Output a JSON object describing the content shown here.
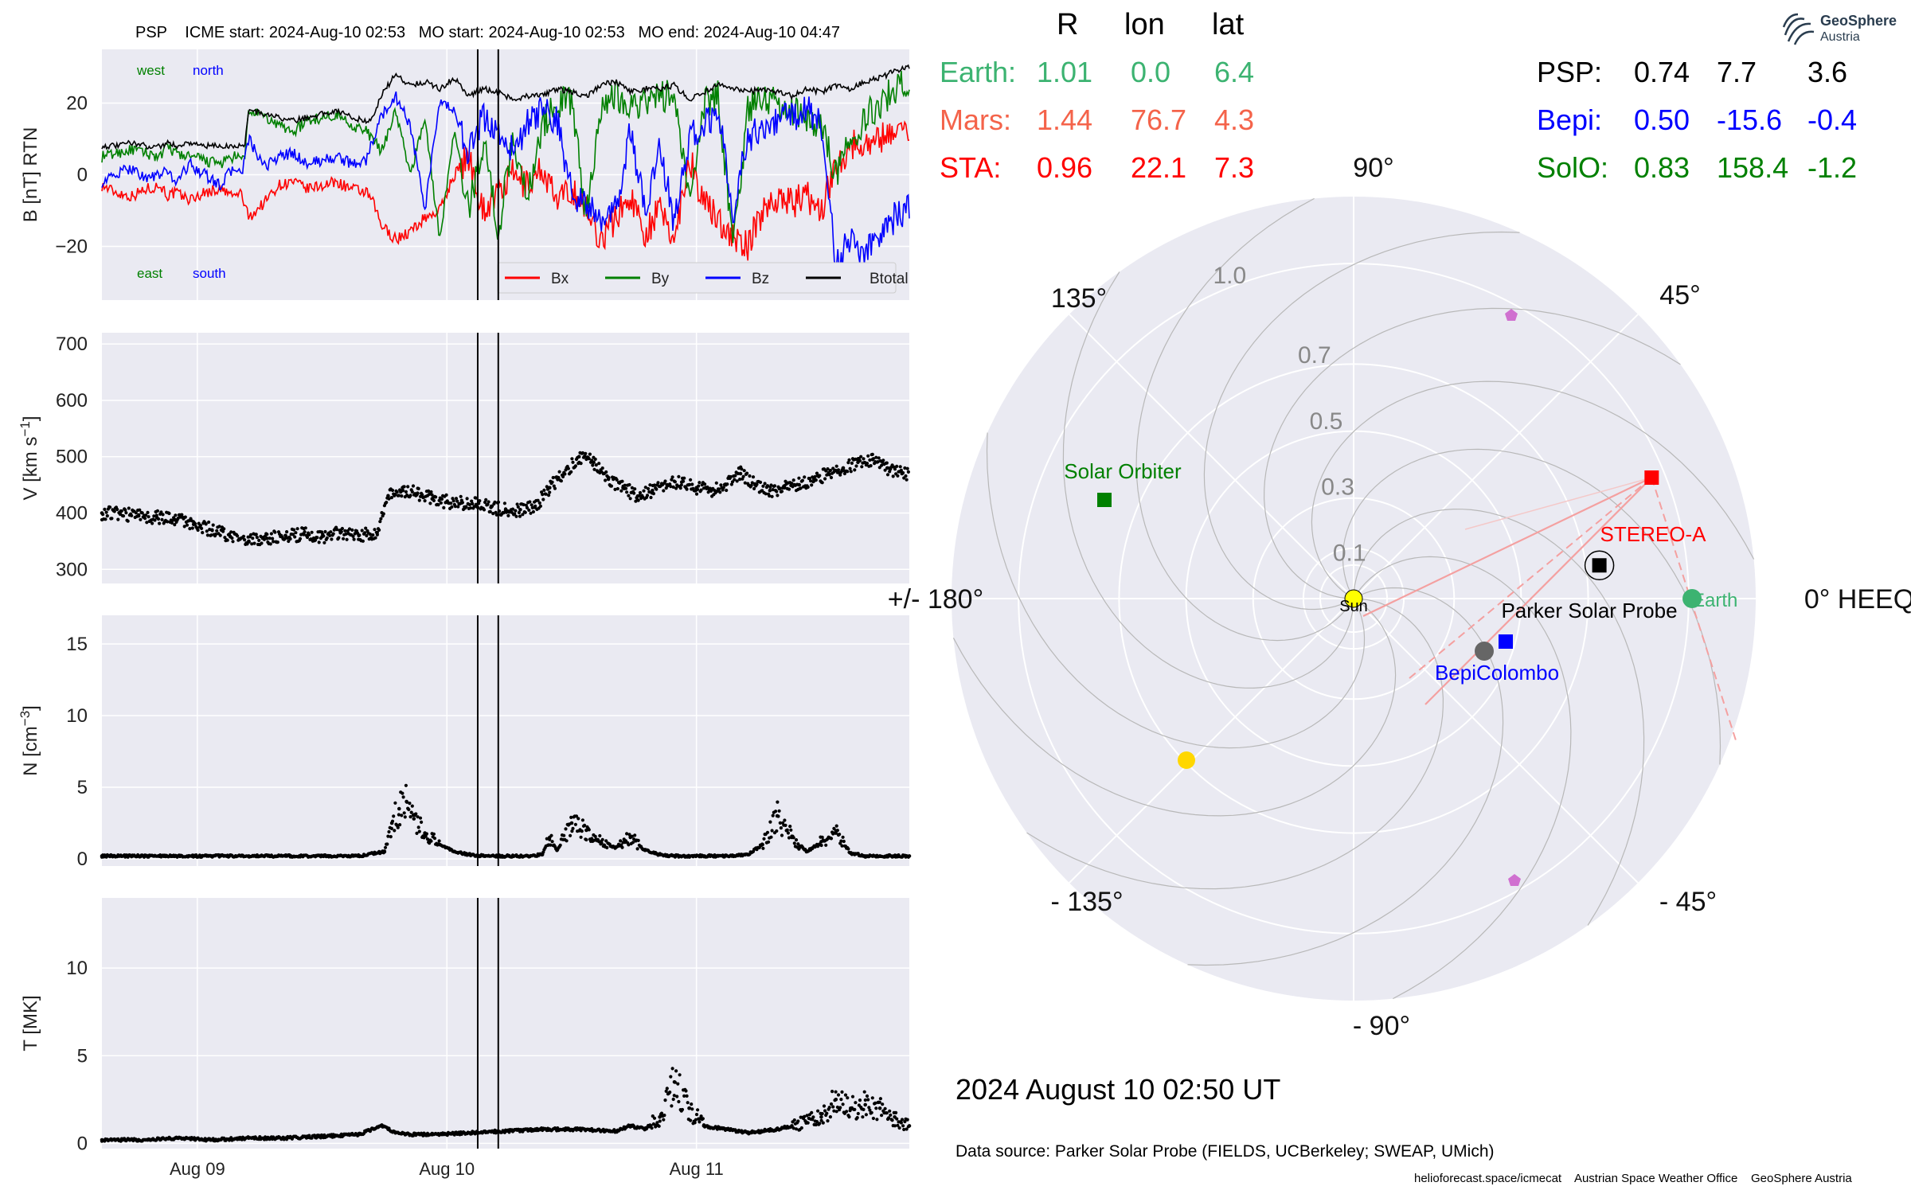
{
  "header": {
    "spacecraft": "PSP",
    "icme_start": "ICME start: 2024-Aug-10 02:53",
    "mo_start": "MO start: 2024-Aug-10 02:53",
    "mo_end": "MO end: 2024-Aug-10 04:47"
  },
  "logo": {
    "name": "GeoSphere",
    "sub": "Austria"
  },
  "table": {
    "col_r": "R",
    "col_lon": "lon",
    "col_lat": "lat",
    "rows_left": [
      {
        "name": "Earth:",
        "r": "1.01",
        "lon": "0.0",
        "lat": "6.4",
        "color": "#3cb371"
      },
      {
        "name": "Mars:",
        "r": "1.44",
        "lon": "76.7",
        "lat": "4.3",
        "color": "#f4634a"
      },
      {
        "name": "STA:",
        "r": "0.96",
        "lon": "22.1",
        "lat": "7.3",
        "color": "#ff0000"
      }
    ],
    "rows_right": [
      {
        "name": "PSP:",
        "r": "0.74",
        "lon": "7.7",
        "lat": "3.6",
        "color": "#000000"
      },
      {
        "name": "Bepi:",
        "r": "0.50",
        "lon": "-15.6",
        "lat": "-0.4",
        "color": "#0000ff"
      },
      {
        "name": "SolO:",
        "r": "0.83",
        "lon": "158.4",
        "lat": "-1.2",
        "color": "#008000"
      }
    ]
  },
  "date_label": "2024 August 10  02:50 UT",
  "data_source": "Data source: Parker Solar Probe (FIELDS, UCBerkeley; SWEAP, UMich)",
  "footer": {
    "a": "helioforecast.space/icmecat",
    "b": "Austrian Space Weather Office",
    "c": "GeoSphere Austria"
  },
  "chart_data": [
    {
      "type": "line",
      "title": "PSP    ICME start: 2024-Aug-10 02:53   MO start: 2024-Aug-10 02:53   MO end: 2024-Aug-10 04:47",
      "ylabel": "B [nT] RTN",
      "ylim": [
        -35,
        35
      ],
      "yticks": [
        20,
        0,
        -20
      ],
      "ytick_labels": [
        "20",
        "0",
        "−20"
      ],
      "xticks": [
        "Aug 09",
        "Aug 10",
        "Aug 11"
      ],
      "annotations": [
        "west",
        "north",
        "east",
        "south"
      ],
      "legend_position": "lower right",
      "x": [
        0,
        0.2,
        0.4,
        0.6,
        0.8,
        0.9,
        1.0,
        1.2,
        1.4,
        1.6,
        1.8,
        1.9,
        1.95,
        2.0,
        2.2,
        2.4,
        2.6,
        2.8,
        3.0,
        3.2,
        3.4,
        3.6,
        3.7,
        3.8,
        4.0,
        4.2,
        4.4,
        4.6,
        4.8,
        5.0,
        5.2,
        5.4,
        5.6,
        5.8,
        6.0,
        6.2,
        6.4,
        6.6,
        6.8,
        7.0,
        7.2,
        7.4,
        7.6,
        7.8,
        8.0,
        8.2,
        8.4,
        8.6,
        8.8,
        9.0,
        9.2,
        9.4,
        9.6,
        9.8,
        10.0,
        10.2,
        10.4,
        10.6,
        10.8,
        11.0
      ],
      "series": [
        {
          "name": "Bx",
          "color": "#ff0000",
          "values": [
            -3,
            -5,
            -6,
            -4,
            -3,
            -6,
            -5,
            -7,
            -5,
            -4,
            -6,
            -5,
            -9,
            -12,
            -8,
            -3,
            -2,
            -4,
            -3,
            -2,
            -4,
            -5,
            -8,
            -14,
            -18,
            -16,
            -12,
            -10,
            0,
            5,
            -10,
            -5,
            0,
            -3,
            2,
            -8,
            -4,
            -10,
            -18,
            -12,
            -6,
            -16,
            -10,
            -18,
            5,
            -8,
            -12,
            -18,
            -20,
            -10,
            -6,
            -8,
            -6,
            -10,
            3,
            8,
            9,
            10,
            13,
            12
          ]
        },
        {
          "name": "By",
          "color": "#008000",
          "values": [
            5,
            6,
            7,
            6,
            5,
            8,
            6,
            5,
            4,
            3,
            5,
            4,
            6,
            18,
            16,
            14,
            12,
            15,
            16,
            17,
            14,
            12,
            10,
            6,
            18,
            0,
            16,
            -18,
            12,
            -10,
            10,
            -16,
            10,
            -6,
            14,
            20,
            21,
            -12,
            20,
            22,
            20,
            20,
            22,
            22,
            -8,
            20,
            22,
            -20,
            18,
            22,
            20,
            18,
            16,
            14,
            0,
            10,
            16,
            20,
            24,
            26
          ]
        },
        {
          "name": "Bz",
          "color": "#0000ff",
          "values": [
            -2,
            0,
            2,
            -1,
            0,
            1,
            -2,
            3,
            0,
            -3,
            2,
            0,
            5,
            10,
            2,
            5,
            6,
            3,
            4,
            5,
            3,
            4,
            10,
            16,
            22,
            14,
            -10,
            20,
            18,
            6,
            16,
            12,
            6,
            14,
            18,
            15,
            -5,
            -8,
            -14,
            -10,
            12,
            -10,
            8,
            -14,
            10,
            14,
            17,
            -10,
            10,
            14,
            15,
            16,
            18,
            15,
            -25,
            -18,
            -22,
            -16,
            -12,
            -10
          ]
        },
        {
          "name": "Btotal",
          "color": "#000000",
          "values": [
            8,
            8,
            9,
            8,
            8,
            9,
            8,
            9,
            8,
            8,
            8,
            8,
            9,
            18,
            17,
            16,
            15,
            16,
            17,
            18,
            16,
            15,
            16,
            22,
            28,
            25,
            26,
            24,
            27,
            22,
            24,
            23,
            21,
            22,
            22,
            24,
            23,
            22,
            25,
            26,
            23,
            24,
            24,
            25,
            21,
            23,
            25,
            24,
            23,
            24,
            23,
            22,
            24,
            23,
            25,
            24,
            26,
            27,
            29,
            30
          ]
        }
      ]
    },
    {
      "type": "scatter",
      "ylabel": "V [km s^-1]",
      "ylim": [
        275,
        720
      ],
      "yticks": [
        300,
        400,
        500,
        600,
        700
      ],
      "xticks": [
        "Aug 09",
        "Aug 10",
        "Aug 11"
      ],
      "x": [
        0.0,
        0.25,
        0.5,
        0.75,
        1.0,
        1.25,
        1.5,
        1.75,
        2.0,
        2.25,
        2.5,
        2.75,
        3.0,
        3.25,
        3.5,
        3.75,
        3.9,
        4.1,
        4.3,
        4.5,
        4.7,
        4.9,
        5.1,
        5.3,
        5.5,
        5.7,
        5.9,
        6.1,
        6.3,
        6.5,
        6.7,
        6.9,
        7.1,
        7.3,
        7.5,
        7.7,
        7.9,
        8.1,
        8.3,
        8.5,
        8.7,
        8.9,
        9.1,
        9.3,
        9.5,
        9.7,
        9.9,
        10.1,
        10.3,
        10.5,
        10.7,
        10.9
      ],
      "values": [
        400,
        398,
        395,
        392,
        388,
        380,
        370,
        358,
        350,
        355,
        360,
        362,
        358,
        365,
        360,
        365,
        430,
        440,
        435,
        425,
        420,
        418,
        415,
        410,
        405,
        406,
        410,
        445,
        470,
        500,
        490,
        460,
        445,
        430,
        440,
        450,
        455,
        445,
        440,
        450,
        470,
        450,
        440,
        445,
        450,
        460,
        470,
        480,
        490,
        495,
        480,
        470
      ]
    },
    {
      "type": "scatter",
      "ylabel": "N [cm^-3]",
      "ylim": [
        -0.5,
        17
      ],
      "yticks": [
        0,
        5,
        10,
        15
      ],
      "xticks": [
        "Aug 09",
        "Aug 10",
        "Aug 11"
      ],
      "x": [
        0.0,
        0.5,
        1.0,
        1.5,
        2.0,
        2.5,
        3.0,
        3.5,
        3.85,
        3.95,
        4.05,
        4.15,
        4.25,
        4.4,
        4.6,
        4.8,
        5.0,
        5.2,
        5.4,
        5.6,
        5.8,
        6.0,
        6.1,
        6.2,
        6.4,
        6.6,
        6.8,
        7.0,
        7.2,
        7.4,
        7.6,
        7.8,
        8.0,
        8.2,
        8.4,
        8.6,
        8.8,
        9.0,
        9.2,
        9.4,
        9.6,
        9.8,
        10.0,
        10.2,
        10.4,
        10.6,
        10.8,
        11.0
      ],
      "values": [
        0.2,
        0.2,
        0.2,
        0.2,
        0.2,
        0.2,
        0.2,
        0.2,
        0.5,
        2.5,
        3.5,
        4.0,
        2.8,
        1.8,
        1.0,
        0.5,
        0.3,
        0.2,
        0.2,
        0.2,
        0.2,
        0.3,
        1.5,
        0.6,
        2.5,
        2.0,
        1.2,
        0.8,
        1.5,
        0.6,
        0.3,
        0.2,
        0.2,
        0.2,
        0.2,
        0.2,
        0.3,
        1.0,
        3.0,
        1.5,
        0.5,
        1.2,
        1.8,
        0.4,
        0.2,
        0.2,
        0.2,
        0.2
      ]
    },
    {
      "type": "scatter",
      "ylabel": "T [MK]",
      "ylim": [
        -0.3,
        14
      ],
      "yticks": [
        0,
        5,
        10
      ],
      "xticks": [
        "Aug 09",
        "Aug 10",
        "Aug 11"
      ],
      "x": [
        0.0,
        0.5,
        1.0,
        1.5,
        2.0,
        2.5,
        3.0,
        3.5,
        3.8,
        3.9,
        4.0,
        4.2,
        4.5,
        5.0,
        5.5,
        6.0,
        6.5,
        7.0,
        7.2,
        7.4,
        7.6,
        7.8,
        8.0,
        8.2,
        8.5,
        8.8,
        9.0,
        9.2,
        9.4,
        9.6,
        9.8,
        10.0,
        10.2,
        10.4,
        10.6,
        10.8,
        11.0
      ],
      "values": [
        0.2,
        0.2,
        0.3,
        0.2,
        0.3,
        0.3,
        0.4,
        0.5,
        1.0,
        0.8,
        0.6,
        0.5,
        0.5,
        0.6,
        0.7,
        0.8,
        0.8,
        0.7,
        1.0,
        0.8,
        1.5,
        3.5,
        2.0,
        1.0,
        0.8,
        0.6,
        0.7,
        0.8,
        1.0,
        1.2,
        1.5,
        2.5,
        2.0,
        2.2,
        2.0,
        1.5,
        1.0
      ]
    },
    {
      "type": "polar",
      "rticks": [
        0.1,
        0.3,
        0.5,
        0.7,
        1.0
      ],
      "angle_labels": [
        "0° HEEQ",
        "45°",
        "90°",
        "135°",
        "+/- 180°",
        "- 135°",
        "- 90°",
        "- 45°"
      ],
      "bodies": [
        {
          "name": "Sun",
          "r": 0.0,
          "lon": 0.0,
          "color": "#ffff00"
        },
        {
          "name": "Earth",
          "r": 1.01,
          "lon": 0.0,
          "color": "#3cb371"
        },
        {
          "name": "Parker Solar Probe",
          "r": 0.74,
          "lon": 7.7,
          "color": "#000000"
        },
        {
          "name": "BepiColombo",
          "r": 0.5,
          "lon": -15.6,
          "color": "#0000ff"
        },
        {
          "name": "STEREO-A",
          "r": 0.96,
          "lon": 22.1,
          "color": "#ff0000"
        },
        {
          "name": "Solar Orbiter",
          "r": 0.83,
          "lon": 158.4,
          "color": "#008000"
        }
      ]
    }
  ]
}
